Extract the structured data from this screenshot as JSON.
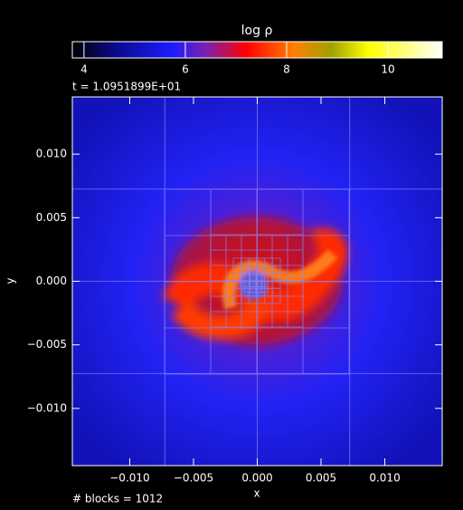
{
  "chart_data": {
    "type": "heatmap",
    "title": "log ρ",
    "subtitle": "t = 1.0951899E+01",
    "x_label": "x",
    "y_label": "y",
    "annotation": "# blocks = 1012",
    "xlim": [
      -0.0145,
      0.0145
    ],
    "ylim": [
      -0.0145,
      0.0145
    ],
    "xticks": [
      {
        "value": -0.01,
        "label": "−0.010"
      },
      {
        "value": -0.005,
        "label": "−0.005"
      },
      {
        "value": 0,
        "label": "0.000"
      },
      {
        "value": 0.005,
        "label": "0.005"
      },
      {
        "value": 0.01,
        "label": "0.010"
      }
    ],
    "yticks": [
      {
        "value": -0.01,
        "label": "−0.010"
      },
      {
        "value": -0.005,
        "label": "−0.005"
      },
      {
        "value": 0,
        "label": "0.000"
      },
      {
        "value": 0.005,
        "label": "0.005"
      },
      {
        "value": 0.01,
        "label": "0.010"
      }
    ],
    "colorbar": {
      "lim": [
        3.77,
        11.07
      ],
      "ticks": [
        4,
        6,
        8,
        10
      ]
    }
  }
}
